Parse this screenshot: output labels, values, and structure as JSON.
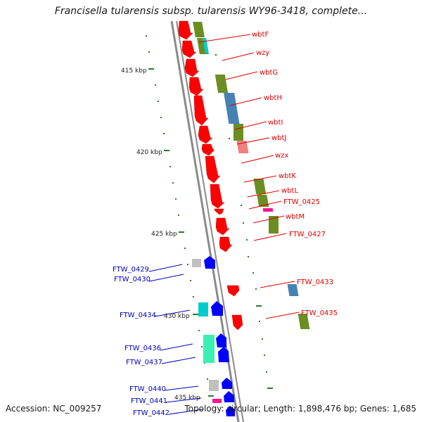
{
  "title": "Francisella tularensis subsp. tularensis WY96-3418, complete...",
  "footer": {
    "accession": "Accession: NC_009257",
    "summary": "Topology: circular; Length: 1,898,476 bp; Genes: 1,685"
  },
  "colors": {
    "backbone": "#8a8a8a",
    "forward_label": "#dd0000",
    "reverse_label": "#0000bb",
    "tick": "#2a7a2a"
  },
  "scale_labels": [
    {
      "text": "415 kbp"
    },
    {
      "text": "420 kbp"
    },
    {
      "text": "425 kbp"
    },
    {
      "text": "430 kbp"
    },
    {
      "text": "435 kbp"
    }
  ],
  "genes_right": [
    {
      "label": "wbtF"
    },
    {
      "label": "wzy"
    },
    {
      "label": "wbtG"
    },
    {
      "label": "wbtH"
    },
    {
      "label": "wbtI"
    },
    {
      "label": "wbtJ"
    },
    {
      "label": "wzx"
    },
    {
      "label": "wbtK"
    },
    {
      "label": "wbtL"
    },
    {
      "label": "FTW_0425"
    },
    {
      "label": "wbtM"
    },
    {
      "label": "FTW_0427"
    },
    {
      "label": "FTW_0433"
    },
    {
      "label": "FTW_0435"
    }
  ],
  "genes_left": [
    {
      "label": "FTW_0429"
    },
    {
      "label": "FTW_0430"
    },
    {
      "label": "FTW_0434"
    },
    {
      "label": "FTW_0436"
    },
    {
      "label": "FTW_0437"
    },
    {
      "label": "FTW_0440"
    },
    {
      "label": "FTW_0441"
    },
    {
      "label": "FTW_0442"
    }
  ]
}
